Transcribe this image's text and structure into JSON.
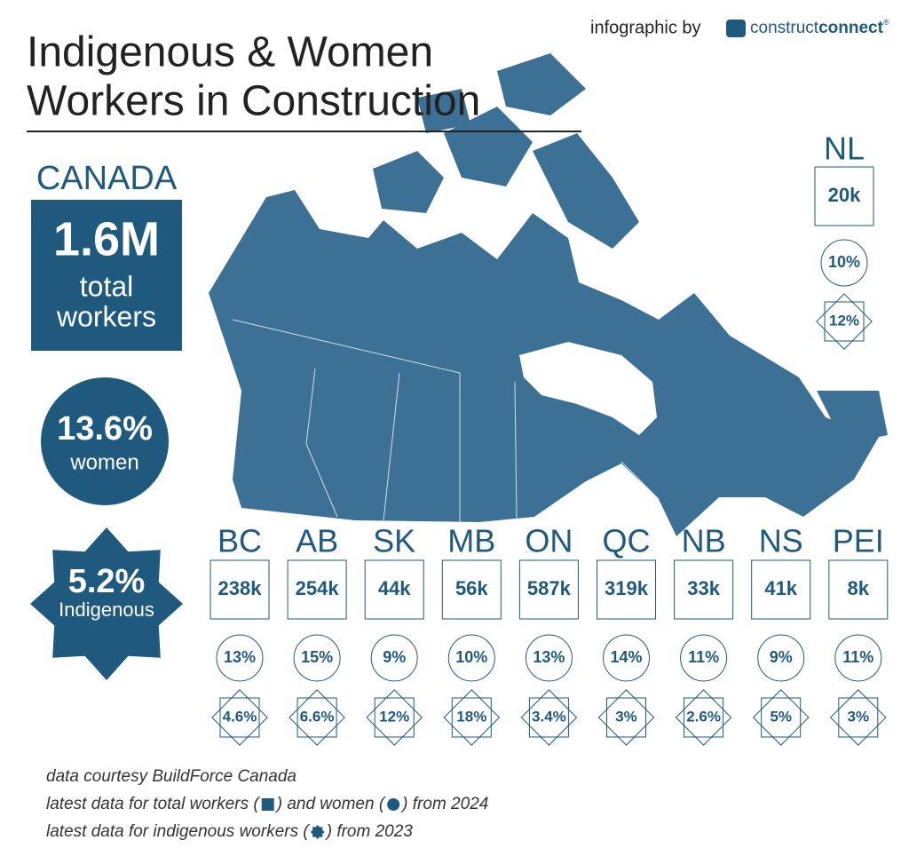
{
  "header": {
    "title_lines": [
      "Indigenous & Women",
      "Workers in Construction"
    ],
    "credit": "infographic by",
    "logo": [
      "construct",
      "connect",
      "®"
    ]
  },
  "national": {
    "label": "CANADA",
    "total": "1.6M",
    "total_label": [
      "total",
      "workers"
    ],
    "women": "13.6%",
    "women_label": "women",
    "indigenous": "5.2%",
    "indigenous_label": "Indigenous"
  },
  "provinces": [
    {
      "name": "NL",
      "total": "20k",
      "women": "10%",
      "indigenous": "12%"
    },
    {
      "name": "BC",
      "total": "238k",
      "women": "13%",
      "indigenous": "4.6%"
    },
    {
      "name": "AB",
      "total": "254k",
      "women": "15%",
      "indigenous": "6.6%"
    },
    {
      "name": "SK",
      "total": "44k",
      "women": "9%",
      "indigenous": "12%"
    },
    {
      "name": "MB",
      "total": "56k",
      "women": "10%",
      "indigenous": "18%"
    },
    {
      "name": "ON",
      "total": "587k",
      "women": "13%",
      "indigenous": "3.4%"
    },
    {
      "name": "QC",
      "total": "319k",
      "women": "14%",
      "indigenous": "3%"
    },
    {
      "name": "NB",
      "total": "33k",
      "women": "11%",
      "indigenous": "2.6%"
    },
    {
      "name": "NS",
      "total": "41k",
      "women": "9%",
      "indigenous": "5%"
    },
    {
      "name": "PEI",
      "total": "8k",
      "women": "11%",
      "indigenous": "3%"
    }
  ],
  "footnotes": [
    [
      "data courtesy BuildForce Canada"
    ],
    [
      "latest data for total workers (",
      ") and women (",
      ") from 2024"
    ],
    [
      "latest data for indigenous workers (",
      ") from 2023"
    ]
  ]
}
